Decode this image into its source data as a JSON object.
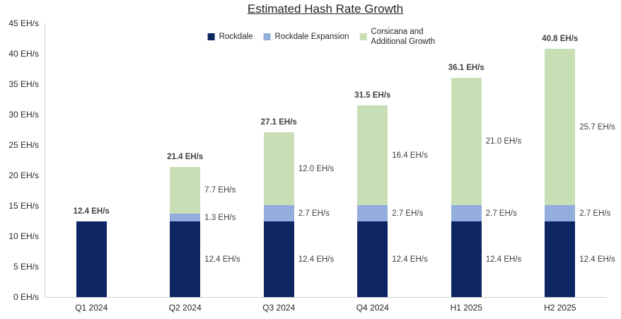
{
  "title": "Estimated Hash Rate Growth",
  "colors": {
    "rockdale": "#0d2663",
    "rockdale_expansion": "#93aedd",
    "corsicana_growth": "#c8dfb6",
    "data_label": "#404040",
    "axis": "#d0d0d0",
    "text": "#262626"
  },
  "chart_data": {
    "type": "bar",
    "stacked": true,
    "title": "Estimated Hash Rate Growth",
    "legend_position": "top",
    "grid": false,
    "categories": [
      "Q1 2024",
      "Q2 2024",
      "Q3 2024",
      "Q4 2024",
      "H1 2025",
      "H2 2025"
    ],
    "series": [
      {
        "name": "Rockdale",
        "color": "#0d2663",
        "values": [
          12.4,
          12.4,
          12.4,
          12.4,
          12.4,
          12.4
        ]
      },
      {
        "name": "Rockdale Expansion",
        "color": "#93aedd",
        "values": [
          0,
          1.3,
          2.7,
          2.7,
          2.7,
          2.7
        ]
      },
      {
        "name": "Corsicana and Additional Growth",
        "color": "#c8dfb6",
        "values": [
          0,
          7.7,
          12.0,
          16.4,
          21.0,
          25.7
        ]
      }
    ],
    "totals": [
      12.4,
      21.4,
      27.1,
      31.5,
      36.1,
      40.8
    ],
    "total_labels": [
      "12.4 EH/s",
      "21.4 EH/s",
      "27.1 EH/s",
      "31.5 EH/s",
      "36.1 EH/s",
      "40.8 EH/s"
    ],
    "segment_labels": [
      [
        null,
        null,
        null
      ],
      [
        "12.4 EH/s",
        "1.3 EH/s",
        "7.7 EH/s"
      ],
      [
        "12.4 EH/s",
        "2.7 EH/s",
        "12.0 EH/s"
      ],
      [
        "12.4 EH/s",
        "2.7 EH/s",
        "16.4 EH/s"
      ],
      [
        "12.4 EH/s",
        "2.7 EH/s",
        "21.0 EH/s"
      ],
      [
        "12.4 EH/s",
        "2.7 EH/s",
        "25.7 EH/s"
      ]
    ],
    "y_axis": {
      "min": 0,
      "max": 45,
      "step": 5,
      "tick_suffix": " EH/s",
      "tick_labels": [
        "0 EH/s",
        "5 EH/s",
        "10 EH/s",
        "15 EH/s",
        "20 EH/s",
        "25 EH/s",
        "30 EH/s",
        "35 EH/s",
        "40 EH/s",
        "45 EH/s"
      ]
    }
  }
}
